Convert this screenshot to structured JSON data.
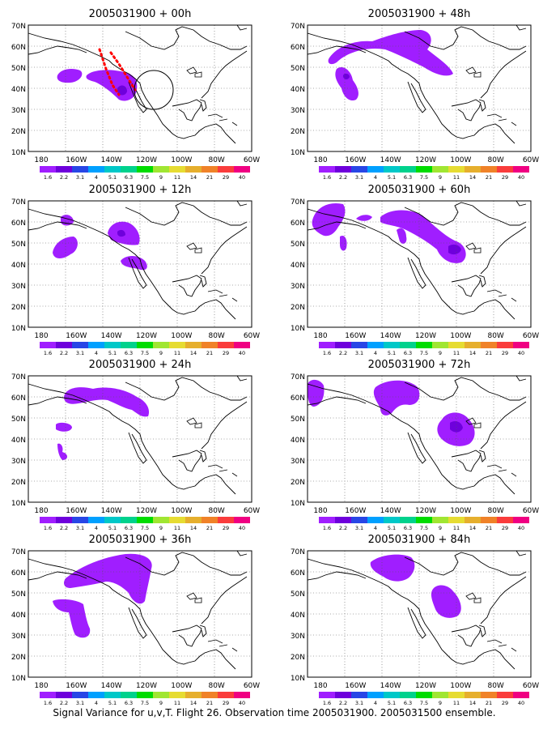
{
  "colorbar": {
    "labels": [
      "1.6",
      "2.2",
      "3.1",
      "4",
      "5.1",
      "6.3",
      "7.5",
      "9",
      "11",
      "14",
      "21",
      "29",
      "40"
    ],
    "colors": [
      "#a01eff",
      "#6e00dc",
      "#2846e6",
      "#00a0ff",
      "#00c8c8",
      "#00d28c",
      "#00dc00",
      "#a0e632",
      "#e6dc32",
      "#e6af2d",
      "#f08228",
      "#fa3c3c",
      "#f00082"
    ]
  },
  "axes": {
    "lon_labels": [
      "180",
      "160W",
      "140W",
      "120W",
      "100W",
      "80W",
      "60W"
    ],
    "lat_labels": [
      "10N",
      "20N",
      "30N",
      "40N",
      "50N",
      "60N",
      "70N"
    ]
  },
  "colors": {
    "signal": "#a01eff",
    "core": "#6e00dc",
    "flight": "#ff0000"
  },
  "panels": [
    {
      "id": "p00",
      "title": "2005031900 + 00h"
    },
    {
      "id": "p48",
      "title": "2005031900 + 48h"
    },
    {
      "id": "p12",
      "title": "2005031900 + 12h"
    },
    {
      "id": "p60",
      "title": "2005031900 + 60h"
    },
    {
      "id": "p24",
      "title": "2005031900 + 24h"
    },
    {
      "id": "p72",
      "title": "2005031900 + 72h"
    },
    {
      "id": "p36",
      "title": "2005031900 + 36h"
    },
    {
      "id": "p84",
      "title": "2005031900 + 84h"
    }
  ],
  "caption": "Signal Variance for u,v,T. Flight 26. Observation time 2005031900. 2005031500 ensemble."
}
